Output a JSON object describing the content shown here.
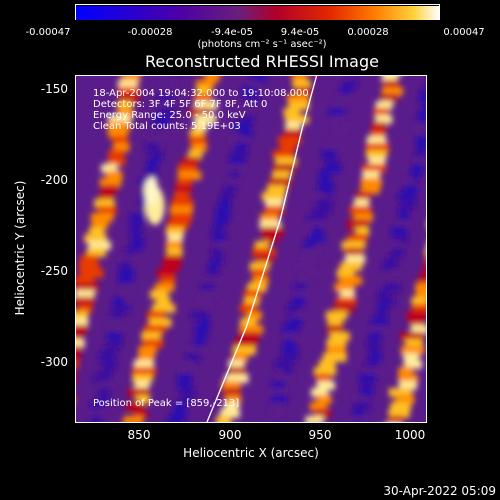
{
  "colorbar": {
    "ticks": [
      "-0.00047",
      "-0.00028",
      "-9.4e-05",
      "9.4e-05",
      "0.00028",
      "0.00047"
    ],
    "units": "(photons cm⁻² s⁻¹ asec⁻²)",
    "colors": [
      "#0000ff",
      "#4b00a8",
      "#6a1f7a",
      "#b0002a",
      "#e32800",
      "#ff7a00",
      "#ffd23a",
      "#ffffff"
    ]
  },
  "chart_data": {
    "type": "heatmap",
    "title": "Reconstructed RHESSI Image",
    "xlabel": "Heliocentric X (arcsec)",
    "ylabel": "Heliocentric Y (arcsec)",
    "xlim": [
      815,
      1010
    ],
    "ylim": [
      -333,
      -141
    ],
    "xticks": [
      "850",
      "900",
      "950",
      "1000"
    ],
    "yticks": [
      "-150",
      "-200",
      "-250",
      "-300"
    ],
    "annotations": [
      "18-Apr-2004 19:04:32.000 to 19:10:08.000",
      "Detectors: 3F 4F 5F 6F 7F 8F, Att 0",
      "Energy Range: 25.0 - 50.0 keV",
      "Clean    Total counts: 5.19E+03"
    ],
    "peak_label": "Position of Peak = [859,-213]",
    "limb_curve": [
      [
        888,
        -333
      ],
      [
        910,
        -280
      ],
      [
        929,
        -220
      ],
      [
        941,
        -170
      ],
      [
        949,
        -141
      ]
    ]
  },
  "datestamp": "30-Apr-2022 05:09"
}
